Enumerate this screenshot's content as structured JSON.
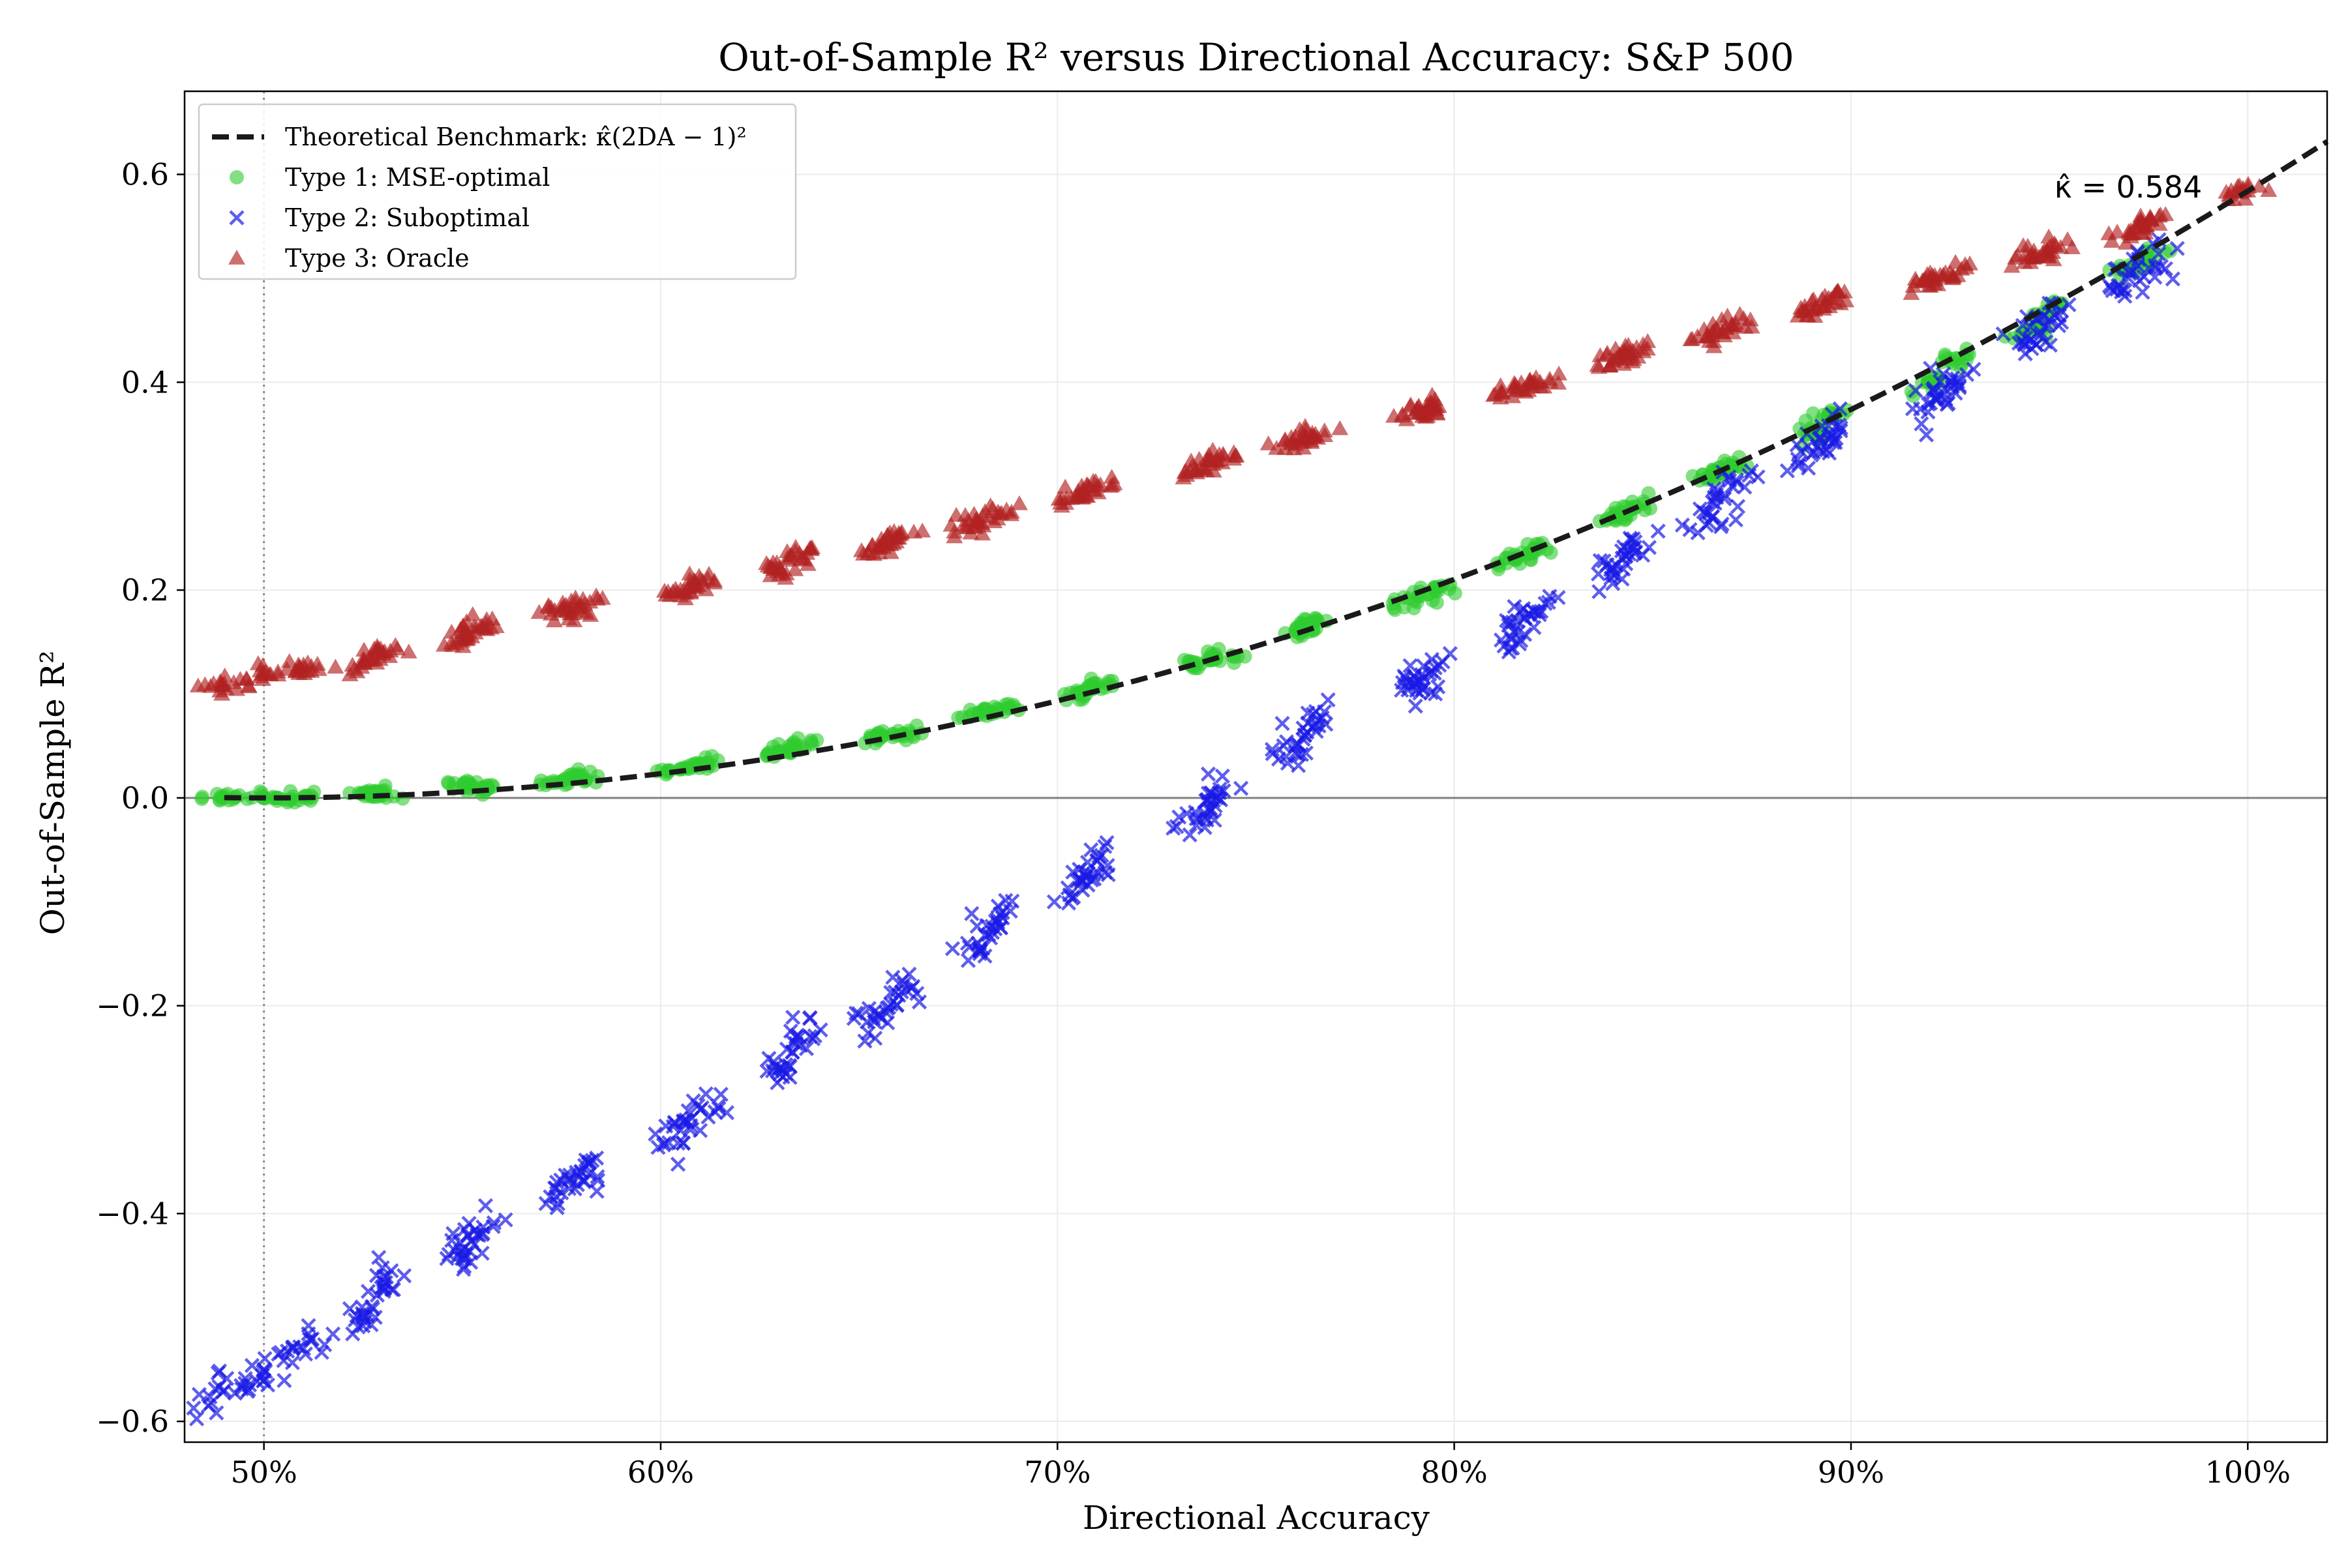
{
  "chart_data": {
    "type": "scatter",
    "title": "Out-of-Sample R² versus Directional Accuracy: S&P 500",
    "xlabel": "Directional Accuracy",
    "ylabel": "Out-of-Sample R²",
    "xlim": [
      0.48,
      1.02
    ],
    "ylim": [
      -0.62,
      0.68
    ],
    "xticks": [
      0.5,
      0.6,
      0.7,
      0.8,
      0.9,
      1.0
    ],
    "xtick_labels": [
      "50%",
      "60%",
      "70%",
      "80%",
      "90%",
      "100%"
    ],
    "yticks": [
      -0.6,
      -0.4,
      -0.2,
      0.0,
      0.2,
      0.4,
      0.6
    ],
    "ytick_labels": [
      "−0.6",
      "−0.4",
      "−0.2",
      "0.0",
      "0.2",
      "0.4",
      "0.6"
    ],
    "grid": true,
    "reference_lines": {
      "horizontal_y": 0.0,
      "vertical_dotted_x": 0.5
    },
    "legend_position": "top-left",
    "kappa_hat": 0.584,
    "annotation": {
      "text": "κ̂ = 0.584",
      "x": 1.0,
      "y": 0.584
    },
    "da_levels": [
      0.49,
      0.5,
      0.51,
      0.525,
      0.53,
      0.55,
      0.555,
      0.575,
      0.58,
      0.605,
      0.61,
      0.63,
      0.635,
      0.655,
      0.66,
      0.68,
      0.685,
      0.705,
      0.71,
      0.735,
      0.74,
      0.76,
      0.765,
      0.79,
      0.795,
      0.815,
      0.82,
      0.84,
      0.845,
      0.865,
      0.87,
      0.89,
      0.895,
      0.92,
      0.925,
      0.945,
      0.95,
      0.97,
      0.975,
      1.0
    ],
    "series": [
      {
        "name": "Theoretical Benchmark: κ̂(2DA − 1)²",
        "kind": "line",
        "style": "dashed",
        "color": "#1a1a1a",
        "x": [
          0.49,
          0.55,
          0.6,
          0.65,
          0.7,
          0.75,
          0.8,
          0.85,
          0.9,
          0.95,
          1.0,
          1.02
        ],
        "y": [
          0.0002,
          0.0058,
          0.0234,
          0.0526,
          0.0934,
          0.146,
          0.2102,
          0.2862,
          0.3738,
          0.473,
          0.584,
          0.6315
        ]
      },
      {
        "name": "Type 1: MSE-optimal",
        "kind": "scatter",
        "marker": "circle",
        "color": "#2ecc2e",
        "x": [
          0.49,
          0.5,
          0.51,
          0.525,
          0.53,
          0.55,
          0.555,
          0.575,
          0.58,
          0.605,
          0.61,
          0.63,
          0.635,
          0.655,
          0.66,
          0.68,
          0.685,
          0.705,
          0.71,
          0.735,
          0.74,
          0.76,
          0.765,
          0.79,
          0.795,
          0.815,
          0.82,
          0.84,
          0.845,
          0.865,
          0.87,
          0.89,
          0.895,
          0.92,
          0.925,
          0.945,
          0.95,
          0.97,
          0.975
        ],
        "y": [
          0.0,
          0.0,
          0.001,
          0.004,
          0.005,
          0.012,
          0.01,
          0.016,
          0.02,
          0.028,
          0.033,
          0.045,
          0.05,
          0.058,
          0.06,
          0.08,
          0.085,
          0.1,
          0.11,
          0.13,
          0.135,
          0.16,
          0.17,
          0.19,
          0.2,
          0.23,
          0.24,
          0.27,
          0.28,
          0.31,
          0.32,
          0.35,
          0.37,
          0.4,
          0.42,
          0.45,
          0.47,
          0.51,
          0.52
        ]
      },
      {
        "name": "Type 2: Suboptimal",
        "kind": "scatter",
        "marker": "x",
        "color": "#1a1ae6",
        "x": [
          0.49,
          0.5,
          0.51,
          0.525,
          0.53,
          0.55,
          0.555,
          0.575,
          0.58,
          0.605,
          0.61,
          0.63,
          0.635,
          0.655,
          0.66,
          0.68,
          0.685,
          0.705,
          0.71,
          0.735,
          0.74,
          0.76,
          0.765,
          0.79,
          0.795,
          0.815,
          0.82,
          0.84,
          0.845,
          0.865,
          0.87,
          0.89,
          0.895,
          0.92,
          0.925,
          0.945,
          0.95,
          0.97,
          0.975
        ],
        "y": [
          -0.57,
          -0.55,
          -0.53,
          -0.5,
          -0.47,
          -0.44,
          -0.42,
          -0.38,
          -0.36,
          -0.32,
          -0.3,
          -0.26,
          -0.23,
          -0.21,
          -0.19,
          -0.14,
          -0.12,
          -0.08,
          -0.06,
          -0.02,
          0.0,
          0.05,
          0.07,
          0.11,
          0.12,
          0.16,
          0.18,
          0.22,
          0.24,
          0.27,
          0.3,
          0.33,
          0.35,
          0.38,
          0.4,
          0.44,
          0.46,
          0.5,
          0.51
        ]
      },
      {
        "name": "Type 3: Oracle",
        "kind": "scatter",
        "marker": "triangle",
        "color": "#b22222",
        "x": [
          0.49,
          0.5,
          0.51,
          0.525,
          0.53,
          0.55,
          0.555,
          0.575,
          0.58,
          0.605,
          0.61,
          0.63,
          0.635,
          0.655,
          0.66,
          0.68,
          0.685,
          0.705,
          0.71,
          0.735,
          0.74,
          0.76,
          0.765,
          0.79,
          0.795,
          0.815,
          0.82,
          0.84,
          0.845,
          0.865,
          0.87,
          0.89,
          0.895,
          0.92,
          0.925,
          0.945,
          0.95,
          0.97,
          0.975,
          1.0
        ],
        "y": [
          0.11,
          0.12,
          0.125,
          0.13,
          0.14,
          0.155,
          0.165,
          0.18,
          0.185,
          0.2,
          0.21,
          0.22,
          0.235,
          0.24,
          0.25,
          0.265,
          0.275,
          0.29,
          0.3,
          0.315,
          0.325,
          0.34,
          0.35,
          0.37,
          0.375,
          0.395,
          0.4,
          0.42,
          0.43,
          0.445,
          0.455,
          0.47,
          0.48,
          0.5,
          0.505,
          0.52,
          0.53,
          0.545,
          0.555,
          0.584
        ]
      }
    ]
  }
}
